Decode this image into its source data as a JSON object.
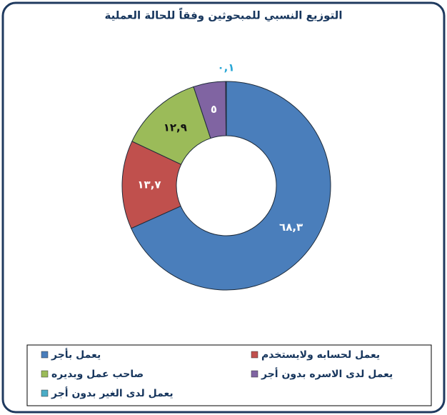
{
  "chart_data": {
    "type": "donut",
    "title": "التوزيع النسبي للمبحوثين وفقاً للحالة العملية",
    "categories": [
      "يعمل بأجر",
      "يعمل لحسابه ولايستخدم",
      "صاحب عمل وبديره",
      "يعمل لدى الاسره بدون أجر",
      "يعمل لدى الغير بدون أجر"
    ],
    "values": [
      68.3,
      13.7,
      12.9,
      5,
      0.1
    ],
    "value_labels": [
      "٦٨,٣",
      "١٣,٧",
      "١٢,٩",
      "٥",
      "٠,١"
    ],
    "colors": [
      "#4a7ebb",
      "#c0504d",
      "#9bbb59",
      "#8064a2",
      "#4bacc6"
    ],
    "label_colors": [
      "#ffffff",
      "#ffffff",
      "#111111",
      "#ffffff",
      "#2aa7d6"
    ]
  }
}
